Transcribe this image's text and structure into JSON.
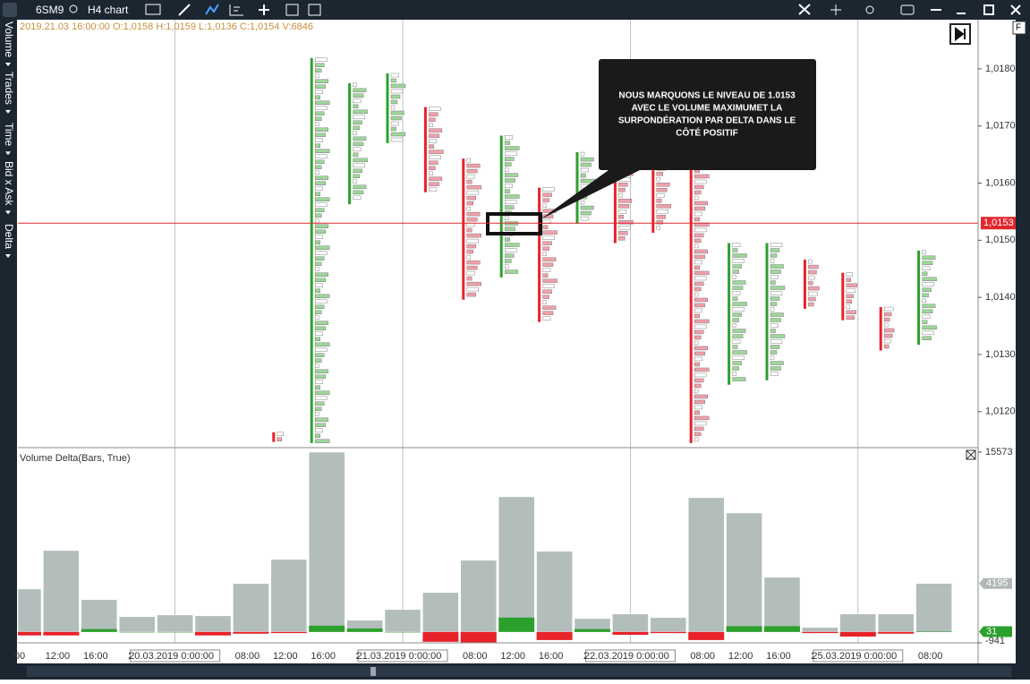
{
  "toolbar": {
    "symbol": "6SM9",
    "chart": "H4 chart"
  },
  "side_tabs": [
    "Volume",
    "Trades",
    "Time",
    "Bid x Ask",
    "Delta"
  ],
  "info_line": "2019.21.03 16:00:00 O:1,0158 H:1,0159 L:1,0136 C:1,0154 V:6846",
  "annotation": [
    "NOUS MARQUONS LE NIVEAU DE 1.0153",
    "AVEC LE VOLUME MAXIMUMET LA",
    "SURPONDÉRATION PAR DELTA DANS LE",
    "CÔTÉ POSITIF"
  ],
  "price_pane": {
    "ylim": [
      1.01137,
      1.01886
    ],
    "yticks": [
      {
        "value": 1.018,
        "label": "1,0180"
      },
      {
        "value": 1.017,
        "label": "1,0170"
      },
      {
        "value": 1.016,
        "label": "1,0160"
      },
      {
        "value": 1.015,
        "label": "1,0150"
      },
      {
        "value": 1.014,
        "label": "1,0140"
      },
      {
        "value": 1.013,
        "label": "1,0130"
      },
      {
        "value": 1.012,
        "label": "1,0120"
      }
    ],
    "marker": {
      "value": 1.0153,
      "label": "1,0153"
    },
    "highs": [
      null,
      null,
      null,
      null,
      null,
      null,
      null,
      1.01164,
      1.01819,
      1.01775,
      1.01792,
      1.01733,
      1.01643,
      1.01683,
      1.01592,
      1.01654,
      1.01638,
      1.01638,
      1.01662,
      1.01495,
      1.01495,
      1.01466,
      1.01443,
      1.01383,
      1.01482
    ],
    "lows": [
      null,
      null,
      null,
      null,
      null,
      null,
      null,
      1.01147,
      1.01145,
      1.01563,
      1.0167,
      1.01584,
      1.01396,
      1.01435,
      1.01357,
      1.01529,
      1.01495,
      1.01513,
      1.01145,
      1.01247,
      1.01255,
      1.0138,
      1.0136,
      1.01307,
      1.01317
    ]
  },
  "delta_pane": {
    "title": "Volume Delta(Bars, True)",
    "ylim": [
      -941,
      15573
    ],
    "yticks": [
      15573,
      -941
    ],
    "volume": [
      3720,
      7050,
      2790,
      1320,
      1470,
      1395,
      4185,
      6280,
      15573,
      1010,
      1940,
      3410,
      6200,
      11700,
      6980,
      1160,
      1550,
      1240,
      11625,
      10300,
      4730,
      390,
      1550,
      1550,
      4195
    ],
    "delta": [
      -300,
      -300,
      250,
      0,
      0,
      -300,
      -150,
      -100,
      540,
      300,
      0,
      -850,
      -900,
      1240,
      -700,
      250,
      -250,
      -100,
      -700,
      500,
      500,
      -100,
      -400,
      -150,
      31
    ],
    "markers": [
      {
        "value": 4195,
        "color": "#b0b8b8"
      },
      {
        "value": 31,
        "color": "#2ca02c"
      }
    ]
  },
  "time_axis": [
    "00",
    "12:00",
    "16:00",
    "20",
    "20.03.2019 0:00:00",
    null,
    "08:00",
    "12:00",
    "16:00",
    "20",
    "21.03.2019 0:00:00",
    null,
    "08:00",
    "12:00",
    "16:00",
    "20",
    "22.03.2019 0:00:00",
    null,
    "08:00",
    "12:00",
    "16:00",
    "20",
    "25.03.2019 0:00:00",
    null,
    "08:00"
  ]
}
